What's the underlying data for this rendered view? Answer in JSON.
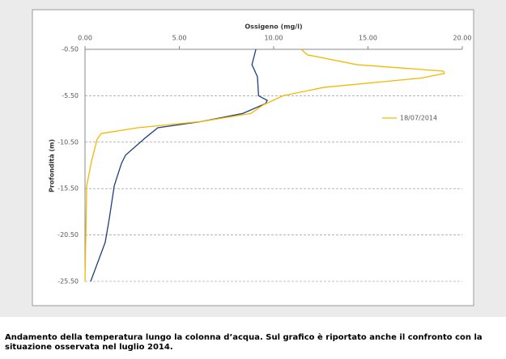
{
  "chart_data": {
    "type": "line",
    "x_label": "Ossigeno (mg/l)",
    "y_label": "Profondità (m)",
    "xlim": [
      0,
      20
    ],
    "xticks": [
      {
        "value": 0,
        "label": "0.00"
      },
      {
        "value": 5,
        "label": "5.00"
      },
      {
        "value": 10,
        "label": "10.00"
      },
      {
        "value": 15,
        "label": "15.00"
      },
      {
        "value": 20,
        "label": "20.00"
      }
    ],
    "ylim": [
      -25.5,
      -0.5
    ],
    "yticks": [
      {
        "value": -0.5,
        "label": "-0.50"
      },
      {
        "value": -5.5,
        "label": "-5.50"
      },
      {
        "value": -10.5,
        "label": "-10.50"
      },
      {
        "value": -15.5,
        "label": "-15.50"
      },
      {
        "value": -20.5,
        "label": "-20.50"
      },
      {
        "value": -25.5,
        "label": "-25.50"
      }
    ],
    "grid": true,
    "legend": "right",
    "series": [
      {
        "color": "#1f3f7a",
        "x": [
          9.06,
          8.85,
          9.14,
          9.18,
          9.2,
          9.66,
          9.57,
          8.37,
          6.22,
          3.86,
          3.22,
          2.15,
          1.93,
          1.55,
          1.29,
          1.07,
          0.3
        ],
        "values": [
          -0.5,
          -2.15,
          -3.45,
          -4.76,
          -5.5,
          -6.0,
          -6.35,
          -7.4,
          -8.26,
          -8.95,
          -10.0,
          -11.9,
          -12.8,
          -15.2,
          -18.7,
          -21.3,
          -25.5
        ]
      },
      {
        "name": "18/07/2014",
        "color": "#f5b800",
        "x": [
          11.46,
          11.8,
          14.4,
          19.0,
          19.05,
          17.8,
          12.66,
          10.5,
          9.44,
          8.8,
          6.22,
          2.8,
          0.86,
          0.64,
          0.34,
          0.09,
          0
        ],
        "values": [
          -0.5,
          -1.1,
          -2.15,
          -2.85,
          -3.1,
          -3.6,
          -4.6,
          -5.5,
          -6.5,
          -7.4,
          -8.26,
          -8.95,
          -9.57,
          -10.2,
          -12.6,
          -15.2,
          -25.5
        ]
      }
    ]
  },
  "caption": "Andamento della temperatura lungo la colonna d’acqua. Sul grafico è riportato anche il confronto con la situazione osservata nel luglio 2014."
}
